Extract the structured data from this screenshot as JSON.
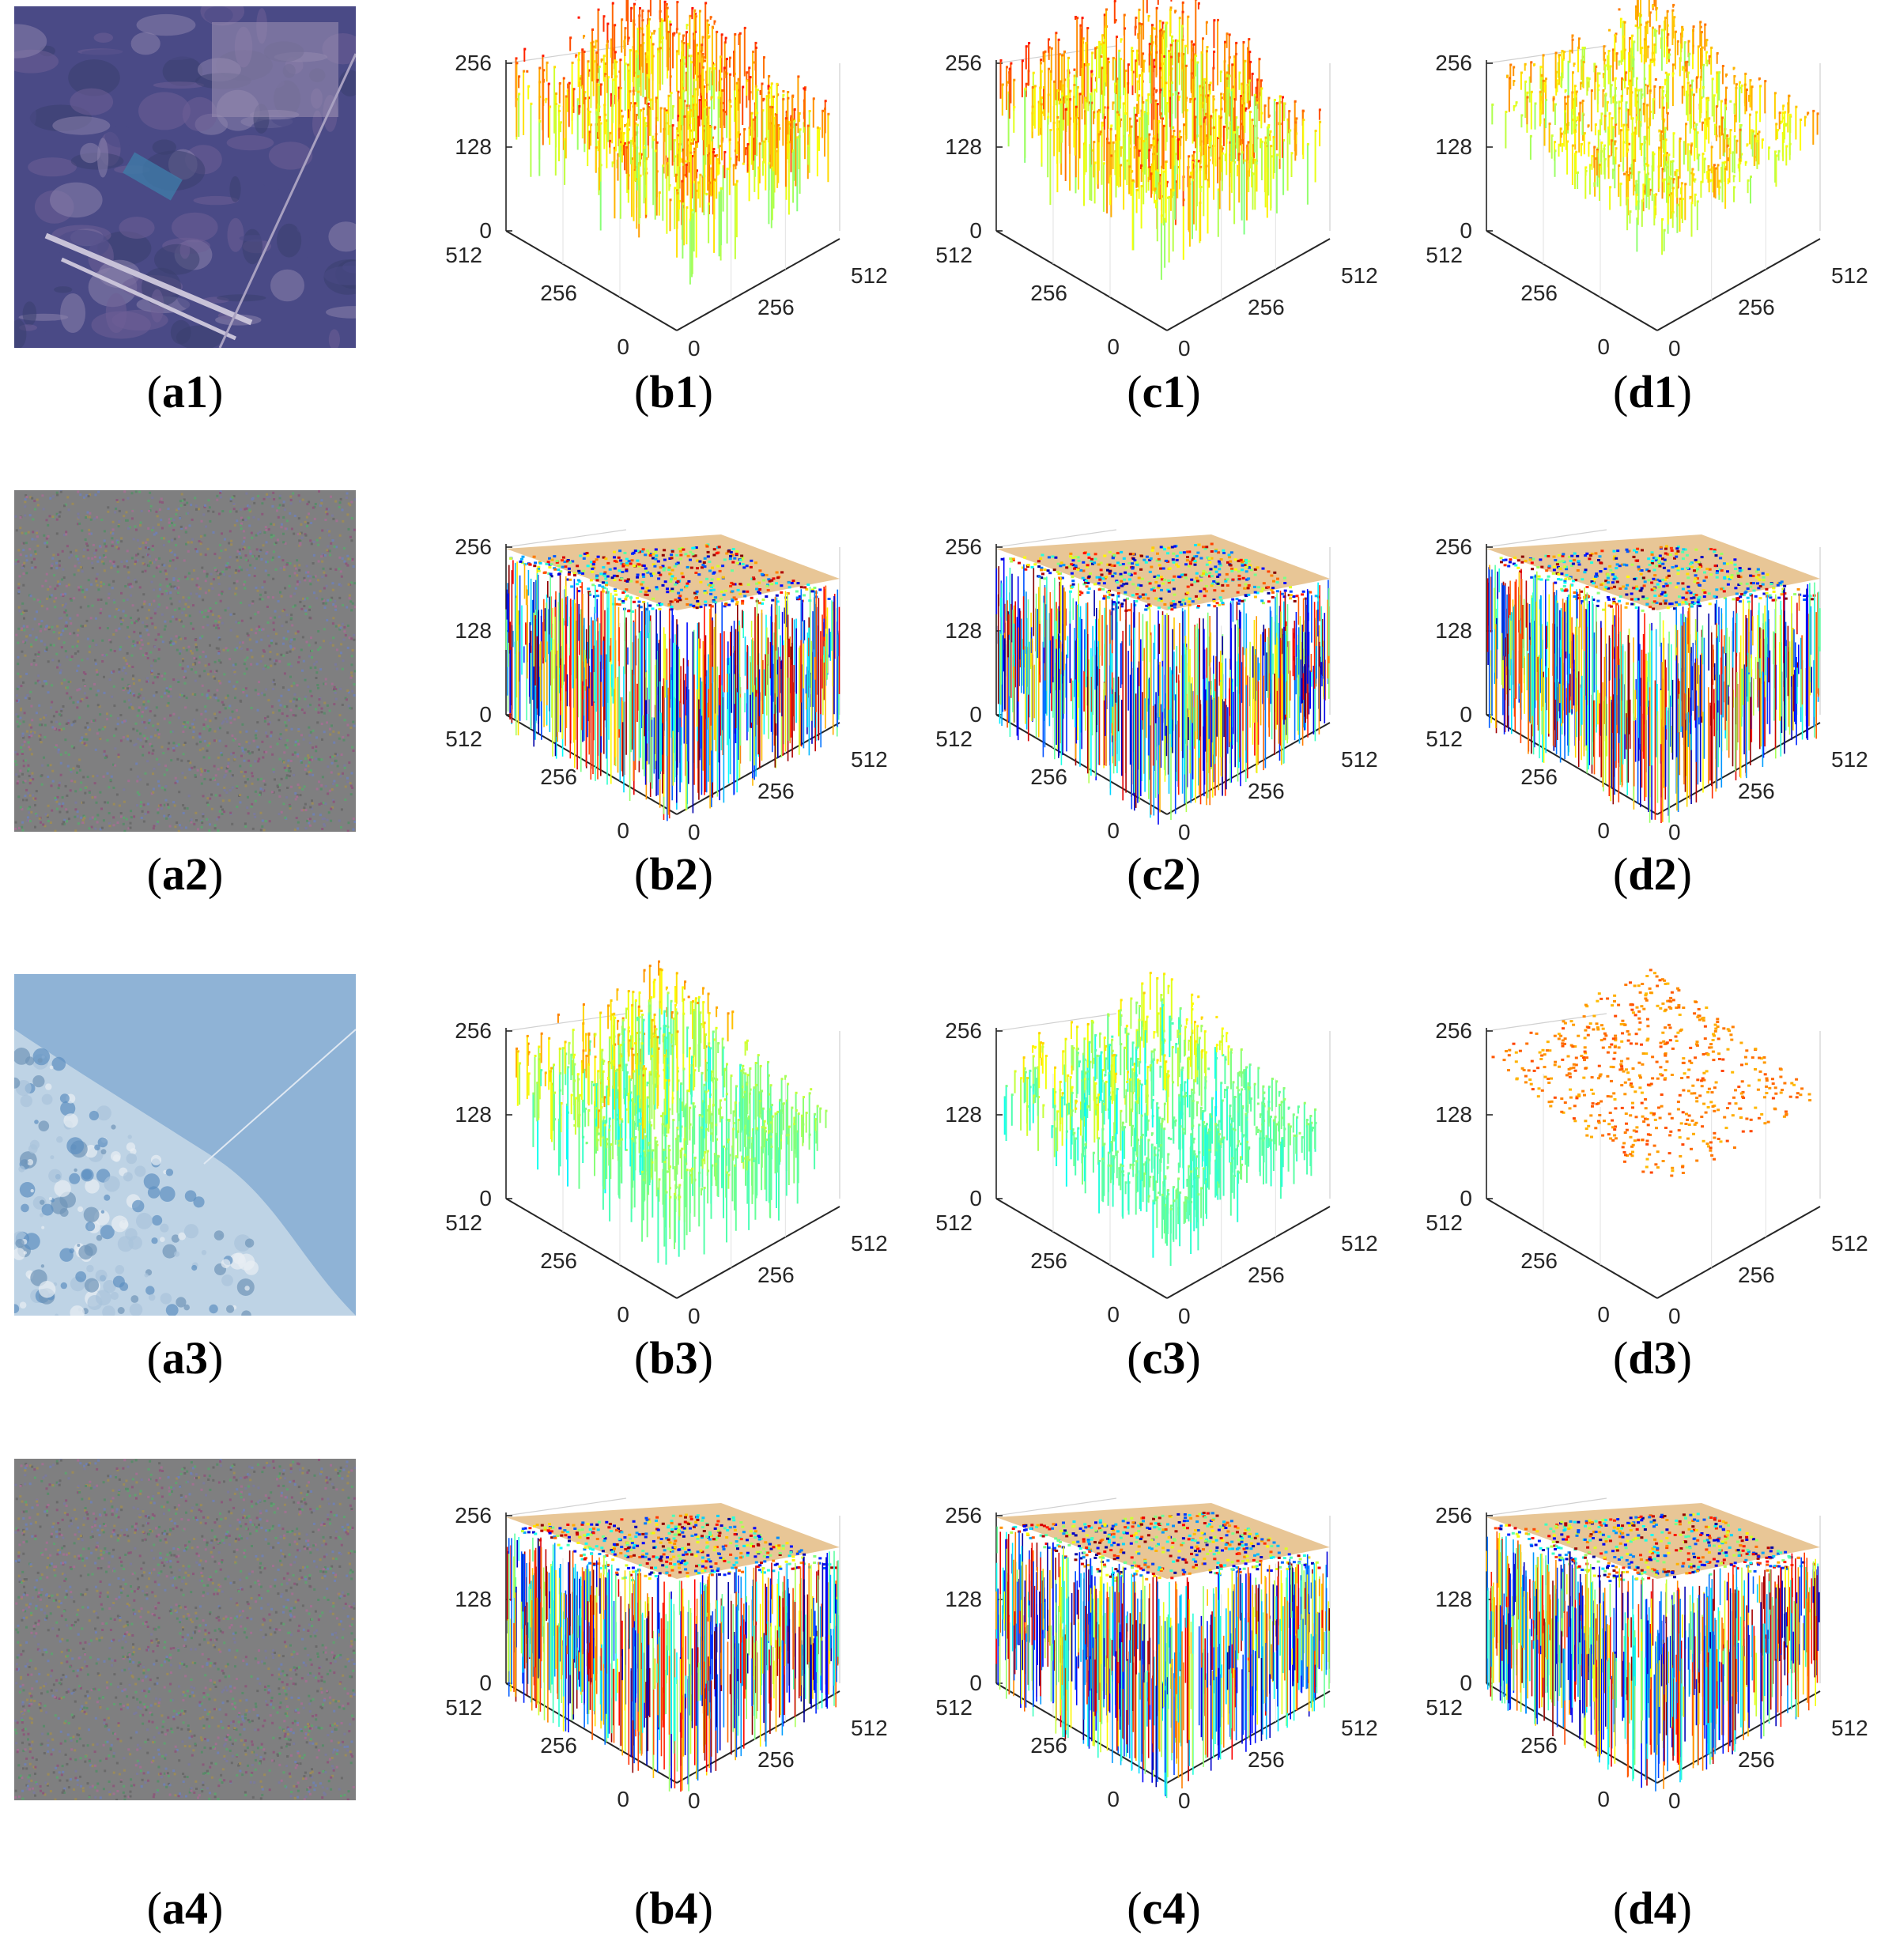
{
  "figure": {
    "rows": [
      {
        "image": {
          "kind": "aerial",
          "colors": [
            "#4a4a86",
            "#6e5e96",
            "#8a82ac",
            "#3b3f70"
          ]
        },
        "captions": {
          "a": "a1",
          "b": "b1",
          "c": "c1",
          "d": "d1"
        },
        "surfaces": [
          "rough-high",
          "rough-high",
          "rough-mid"
        ]
      },
      {
        "image": {
          "kind": "noise",
          "colors": [
            "#7a7a7a",
            "#6a9a6a",
            "#9a6a8a",
            "#8a8a5a"
          ]
        },
        "captions": {
          "a": "a2",
          "b": "b2",
          "c": "c2",
          "d": "d2"
        },
        "surfaces": [
          "noise",
          "noise",
          "noise"
        ]
      },
      {
        "image": {
          "kind": "coast",
          "colors": [
            "#8fb3d6",
            "#c7d8e8",
            "#5d8ec0",
            "#a9c3dc"
          ]
        },
        "captions": {
          "a": "a3",
          "b": "b3",
          "c": "c3",
          "d": "d3"
        },
        "surfaces": [
          "half",
          "half-low",
          "flat"
        ]
      },
      {
        "image": {
          "kind": "noise",
          "colors": [
            "#7a7a7a",
            "#6a9a6a",
            "#9a6a8a",
            "#8a8a5a"
          ]
        },
        "captions": {
          "a": "a4",
          "b": "b4",
          "c": "c4",
          "d": "d4"
        },
        "surfaces": [
          "noise",
          "noise",
          "noise"
        ]
      }
    ],
    "axis_ticks": {
      "z": [
        "0",
        "128",
        "256"
      ],
      "y": [
        "512",
        "256",
        "0"
      ],
      "x": [
        "0",
        "256",
        "512"
      ]
    },
    "colormap": [
      "#00008f",
      "#0000ff",
      "#0080ff",
      "#00ffff",
      "#80ff80",
      "#ffff00",
      "#ff8000",
      "#ff0000",
      "#800000"
    ]
  }
}
